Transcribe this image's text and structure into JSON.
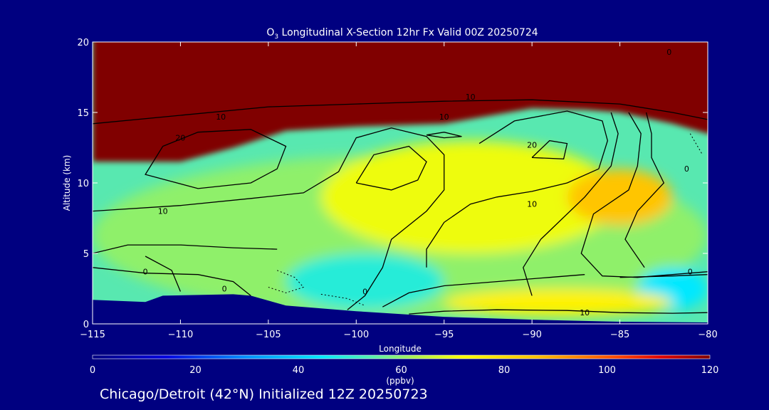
{
  "chart_data": {
    "type": "heatmap",
    "title_prefix": "O",
    "title_subscript": "3",
    "title_rest": " Longitudinal X-Section 12hr  Fx Valid 00Z 20250724",
    "xlabel": "Longitude",
    "ylabel": "Altitude (km)",
    "xlim": [
      -115,
      -80
    ],
    "ylim": [
      0,
      20
    ],
    "x_ticks": [
      -115,
      -110,
      -105,
      -100,
      -95,
      -90,
      -85,
      -80
    ],
    "x_tick_labels": [
      "−115",
      "−110",
      "−105",
      "−100",
      "−95",
      "−90",
      "−85",
      "−80"
    ],
    "y_ticks": [
      0,
      5,
      10,
      15,
      20
    ],
    "y_tick_labels": [
      "0",
      "5",
      "10",
      "15",
      "20"
    ],
    "colorbar": {
      "label": "(ppbv)",
      "min": 0,
      "max": 120,
      "ticks": [
        0,
        20,
        40,
        60,
        80,
        100,
        120
      ],
      "tick_labels": [
        "0",
        "20",
        "40",
        "60",
        "80",
        "100",
        "120"
      ]
    },
    "contour_labels": [
      "0",
      "10",
      "20"
    ],
    "footer": "Chicago/Detroit (42°N) Initialized 12Z 20250723",
    "fields": {
      "stratosphere_ozone_ppbv": 120,
      "tropopause_height_km": [
        [
          -115,
          11.5
        ],
        [
          -110,
          11.5
        ],
        [
          -107,
          12.5
        ],
        [
          -104,
          13.7
        ],
        [
          -100,
          14.0
        ],
        [
          -95,
          14.2
        ],
        [
          -90,
          15.3
        ],
        [
          -87,
          15.2
        ],
        [
          -85,
          15.0
        ],
        [
          -82,
          14.2
        ],
        [
          -80,
          13.5
        ]
      ],
      "terrain_height_km": [
        [
          -115,
          1.7
        ],
        [
          -112,
          1.55
        ],
        [
          -111,
          2.0
        ],
        [
          -107,
          2.1
        ],
        [
          -106,
          2.0
        ],
        [
          -104,
          1.3
        ],
        [
          -100,
          0.9
        ],
        [
          -95,
          0.5
        ],
        [
          -90,
          0.3
        ],
        [
          -85,
          0.15
        ],
        [
          -80,
          0.1
        ]
      ],
      "regions": [
        {
          "ozone_ppbv": 60,
          "lon_range": [
            -115,
            -80
          ],
          "alt_range": [
            0.5,
            12
          ]
        },
        {
          "ozone_ppbv": 70,
          "lon_range": [
            -102,
            -85
          ],
          "alt_range": [
            5,
            13
          ]
        },
        {
          "ozone_ppbv": 50,
          "lon_range": [
            -104,
            -95
          ],
          "alt_range": [
            1,
            5
          ]
        },
        {
          "ozone_ppbv": 85,
          "lon_range": [
            -88,
            -82
          ],
          "alt_range": [
            7,
            11
          ]
        },
        {
          "ozone_ppbv": 45,
          "lon_range": [
            -84,
            -80
          ],
          "alt_range": [
            1,
            4
          ]
        },
        {
          "ozone_ppbv": 75,
          "lon_range": [
            -95,
            -82
          ],
          "alt_range": [
            0.5,
            2.5
          ]
        }
      ]
    }
  }
}
